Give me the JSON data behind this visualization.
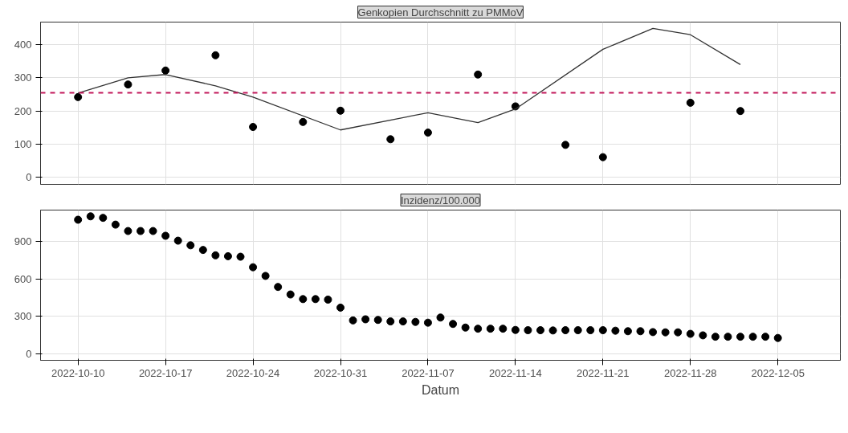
{
  "chart_data": [
    {
      "type": "scatter",
      "title": "Genkopien Durchschnitt zu PMMoV",
      "xlim": [
        "2022-10-07",
        "2022-12-10"
      ],
      "xticks": [
        "2022-10-10",
        "2022-10-17",
        "2022-10-24",
        "2022-10-31",
        "2022-11-07",
        "2022-11-14",
        "2022-11-21",
        "2022-11-28",
        "2022-12-05"
      ],
      "ylim": [
        -21,
        468
      ],
      "yticks": [
        0,
        100,
        200,
        300,
        400
      ],
      "grid": true,
      "tick_labels": "y",
      "series": [
        {
          "marker": "circle",
          "color": "#000000",
          "x": [
            "2022-10-10",
            "2022-10-14",
            "2022-10-17",
            "2022-10-21",
            "2022-10-24",
            "2022-10-28",
            "2022-10-31",
            "2022-11-04",
            "2022-11-07",
            "2022-11-11",
            "2022-11-14",
            "2022-11-18",
            "2022-11-21",
            "2022-11-28",
            "2022-12-02"
          ],
          "values": [
            242,
            280,
            322,
            368,
            152,
            167,
            201,
            115,
            135,
            310,
            214,
            98,
            61,
            225,
            200
          ]
        },
        {
          "type": "line",
          "color": "#333333",
          "line_style": "solid",
          "x": [
            "2022-10-10",
            "2022-10-14",
            "2022-10-17",
            "2022-10-21",
            "2022-10-24",
            "2022-10-31",
            "2022-11-07",
            "2022-11-11",
            "2022-11-14",
            "2022-11-21",
            "2022-11-25",
            "2022-11-28",
            "2022-12-02"
          ],
          "values": [
            254,
            300,
            310,
            276,
            242,
            143,
            195,
            165,
            206,
            386,
            449,
            430,
            340
          ]
        }
      ],
      "ref_lines": [
        {
          "axis": "y",
          "value": 255,
          "color": "#c2185b",
          "line_style": "dashed"
        }
      ]
    },
    {
      "type": "scatter",
      "title": "Inzidenz/100.000",
      "xlabel": "Datum",
      "xlim": [
        "2022-10-07",
        "2022-12-10"
      ],
      "xticks": [
        "2022-10-10",
        "2022-10-17",
        "2022-10-24",
        "2022-10-31",
        "2022-11-07",
        "2022-11-14",
        "2022-11-21",
        "2022-11-28",
        "2022-12-05"
      ],
      "ylim": [
        -50,
        1148
      ],
      "yticks": [
        0,
        300,
        600,
        900
      ],
      "grid": true,
      "series": [
        {
          "marker": "circle",
          "color": "#000000",
          "x": [
            "2022-10-10",
            "2022-10-11",
            "2022-10-12",
            "2022-10-13",
            "2022-10-14",
            "2022-10-15",
            "2022-10-16",
            "2022-10-17",
            "2022-10-18",
            "2022-10-19",
            "2022-10-20",
            "2022-10-21",
            "2022-10-22",
            "2022-10-23",
            "2022-10-24",
            "2022-10-25",
            "2022-10-26",
            "2022-10-27",
            "2022-10-28",
            "2022-10-29",
            "2022-10-30",
            "2022-10-31",
            "2022-11-01",
            "2022-11-02",
            "2022-11-03",
            "2022-11-04",
            "2022-11-05",
            "2022-11-06",
            "2022-11-07",
            "2022-11-08",
            "2022-11-09",
            "2022-11-10",
            "2022-11-11",
            "2022-11-12",
            "2022-11-13",
            "2022-11-14",
            "2022-11-15",
            "2022-11-16",
            "2022-11-17",
            "2022-11-18",
            "2022-11-19",
            "2022-11-20",
            "2022-11-21",
            "2022-11-22",
            "2022-11-23",
            "2022-11-24",
            "2022-11-25",
            "2022-11-26",
            "2022-11-27",
            "2022-11-28",
            "2022-11-29",
            "2022-11-30",
            "2022-12-01",
            "2022-12-02",
            "2022-12-03",
            "2022-12-04",
            "2022-12-05"
          ],
          "values": [
            1071,
            1098,
            1086,
            1032,
            981,
            981,
            981,
            943,
            904,
            867,
            830,
            787,
            780,
            776,
            692,
            623,
            535,
            475,
            438,
            438,
            434,
            370,
            268,
            277,
            272,
            260,
            260,
            256,
            250,
            291,
            240,
            211,
            202,
            202,
            202,
            192,
            190,
            190,
            188,
            190,
            190,
            190,
            190,
            186,
            182,
            182,
            175,
            173,
            173,
            161,
            149,
            138,
            138,
            138,
            138,
            138,
            128
          ]
        }
      ]
    }
  ]
}
